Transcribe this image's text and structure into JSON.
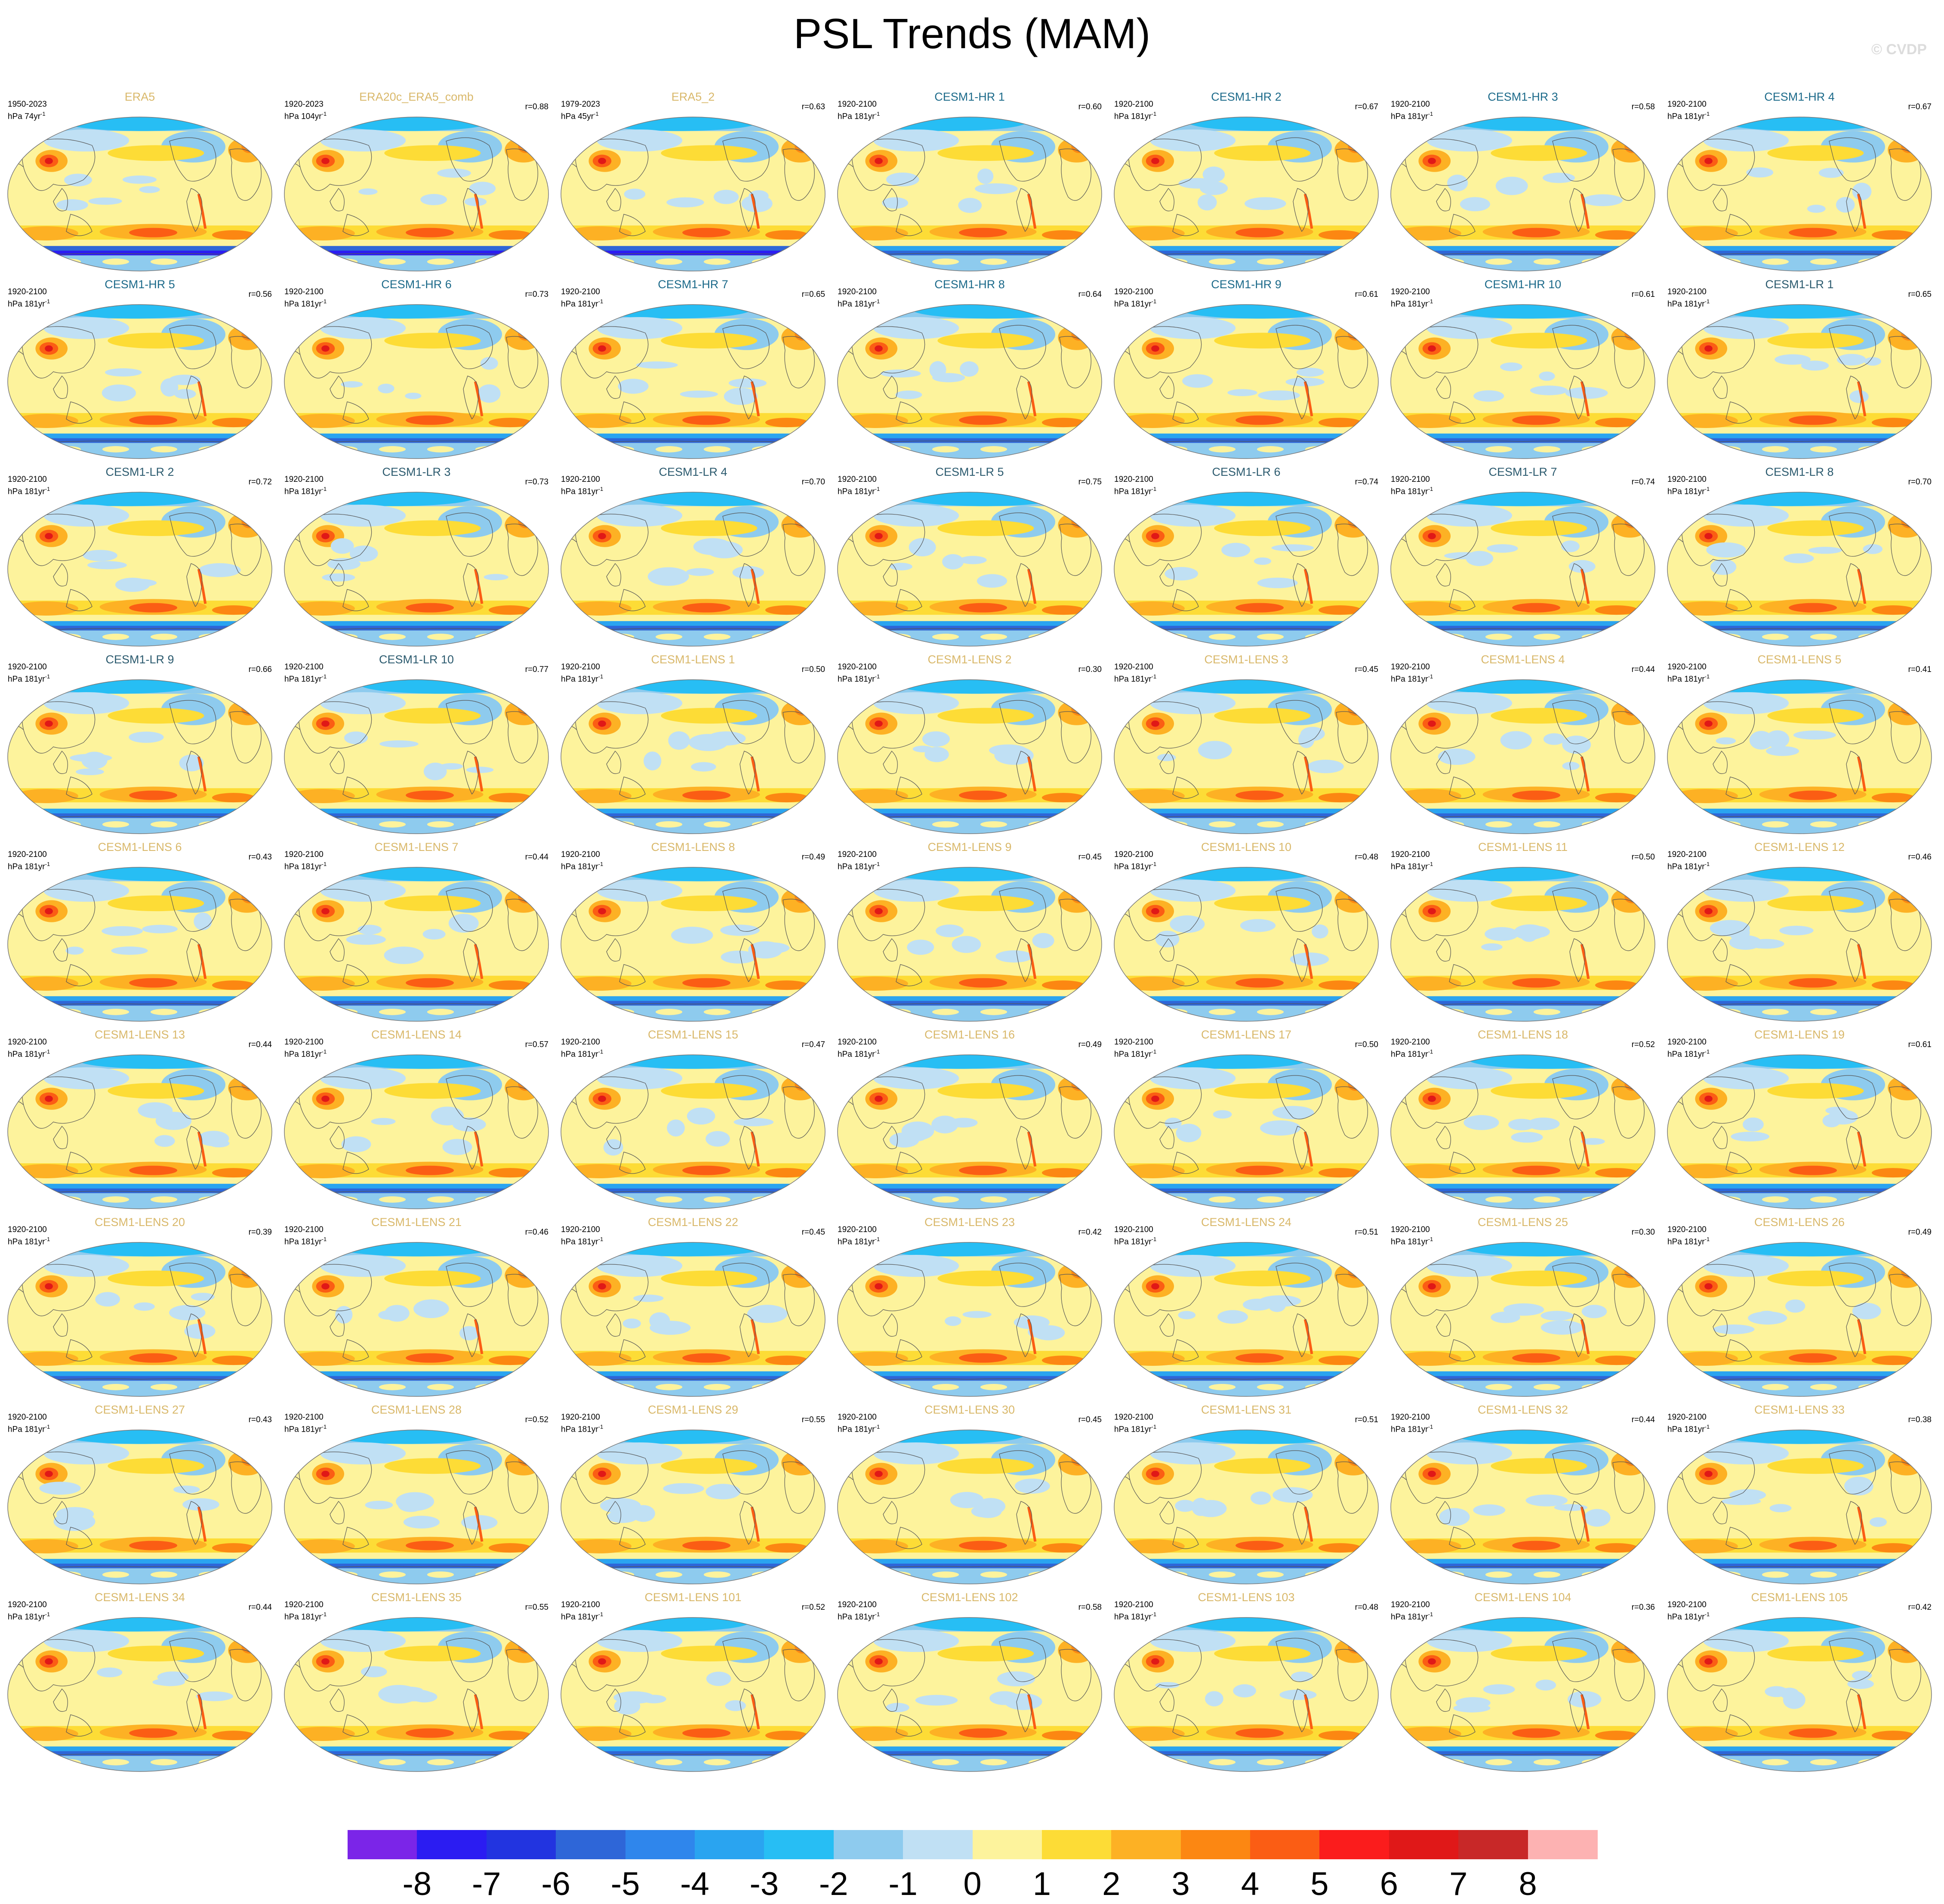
{
  "title": "PSL Trends (MAM)",
  "credit": "© CVDP",
  "colors": {
    "obs_title": "#d9b86a",
    "hr_title": "#1c6a8a",
    "lr_title": "#2b5a6e",
    "lens_title": "#d9b86a",
    "ocean": "#fdf39c",
    "coast": "#555555"
  },
  "colorbar": {
    "colors": [
      "#7b25e8",
      "#2b1cf2",
      "#2234e0",
      "#2e66d8",
      "#2f86ec",
      "#2aa4f0",
      "#27bef4",
      "#8ecbee",
      "#c0e0f4",
      "#fdf39c",
      "#fddc36",
      "#fdb124",
      "#fc8712",
      "#fb5d14",
      "#fb1c1c",
      "#e01818",
      "#c82828",
      "#fdb2b2"
    ],
    "labels": [
      "-8",
      "-7",
      "-6",
      "-5",
      "-4",
      "-3",
      "-2",
      "-1",
      "0",
      "1",
      "2",
      "3",
      "4",
      "5",
      "6",
      "7",
      "8"
    ]
  },
  "panels": [
    {
      "name": "ERA5",
      "group": "obs",
      "period": "1950-2023",
      "units": "hPa 74yr",
      "corr": ""
    },
    {
      "name": "ERA20c_ERA5_comb",
      "group": "obs",
      "period": "1920-2023",
      "units": "hPa 104yr",
      "corr": "r=0.88"
    },
    {
      "name": "ERA5_2",
      "group": "obs",
      "period": "1979-2023",
      "units": "hPa 45yr",
      "corr": "r=0.63"
    },
    {
      "name": "CESM1-HR 1",
      "group": "hr",
      "period": "1920-2100",
      "units": "hPa 181yr",
      "corr": "r=0.60"
    },
    {
      "name": "CESM1-HR 2",
      "group": "hr",
      "period": "1920-2100",
      "units": "hPa 181yr",
      "corr": "r=0.67"
    },
    {
      "name": "CESM1-HR 3",
      "group": "hr",
      "period": "1920-2100",
      "units": "hPa 181yr",
      "corr": "r=0.58"
    },
    {
      "name": "CESM1-HR 4",
      "group": "hr",
      "period": "1920-2100",
      "units": "hPa 181yr",
      "corr": "r=0.67"
    },
    {
      "name": "CESM1-HR 5",
      "group": "hr",
      "period": "1920-2100",
      "units": "hPa 181yr",
      "corr": "r=0.56"
    },
    {
      "name": "CESM1-HR 6",
      "group": "hr",
      "period": "1920-2100",
      "units": "hPa 181yr",
      "corr": "r=0.73"
    },
    {
      "name": "CESM1-HR 7",
      "group": "hr",
      "period": "1920-2100",
      "units": "hPa 181yr",
      "corr": "r=0.65"
    },
    {
      "name": "CESM1-HR 8",
      "group": "hr",
      "period": "1920-2100",
      "units": "hPa 181yr",
      "corr": "r=0.64"
    },
    {
      "name": "CESM1-HR 9",
      "group": "hr",
      "period": "1920-2100",
      "units": "hPa 181yr",
      "corr": "r=0.61"
    },
    {
      "name": "CESM1-HR 10",
      "group": "hr",
      "period": "1920-2100",
      "units": "hPa 181yr",
      "corr": "r=0.61"
    },
    {
      "name": "CESM1-LR 1",
      "group": "lr",
      "period": "1920-2100",
      "units": "hPa 181yr",
      "corr": "r=0.65"
    },
    {
      "name": "CESM1-LR 2",
      "group": "lr",
      "period": "1920-2100",
      "units": "hPa 181yr",
      "corr": "r=0.72"
    },
    {
      "name": "CESM1-LR 3",
      "group": "lr",
      "period": "1920-2100",
      "units": "hPa 181yr",
      "corr": "r=0.73"
    },
    {
      "name": "CESM1-LR 4",
      "group": "lr",
      "period": "1920-2100",
      "units": "hPa 181yr",
      "corr": "r=0.70"
    },
    {
      "name": "CESM1-LR 5",
      "group": "lr",
      "period": "1920-2100",
      "units": "hPa 181yr",
      "corr": "r=0.75"
    },
    {
      "name": "CESM1-LR 6",
      "group": "lr",
      "period": "1920-2100",
      "units": "hPa 181yr",
      "corr": "r=0.74"
    },
    {
      "name": "CESM1-LR 7",
      "group": "lr",
      "period": "1920-2100",
      "units": "hPa 181yr",
      "corr": "r=0.74"
    },
    {
      "name": "CESM1-LR 8",
      "group": "lr",
      "period": "1920-2100",
      "units": "hPa 181yr",
      "corr": "r=0.70"
    },
    {
      "name": "CESM1-LR 9",
      "group": "lr",
      "period": "1920-2100",
      "units": "hPa 181yr",
      "corr": "r=0.66"
    },
    {
      "name": "CESM1-LR 10",
      "group": "lr",
      "period": "1920-2100",
      "units": "hPa 181yr",
      "corr": "r=0.77"
    },
    {
      "name": "CESM1-LENS 1",
      "group": "lens",
      "period": "1920-2100",
      "units": "hPa 181yr",
      "corr": "r=0.50"
    },
    {
      "name": "CESM1-LENS 2",
      "group": "lens",
      "period": "1920-2100",
      "units": "hPa 181yr",
      "corr": "r=0.30"
    },
    {
      "name": "CESM1-LENS 3",
      "group": "lens",
      "period": "1920-2100",
      "units": "hPa 181yr",
      "corr": "r=0.45"
    },
    {
      "name": "CESM1-LENS 4",
      "group": "lens",
      "period": "1920-2100",
      "units": "hPa 181yr",
      "corr": "r=0.44"
    },
    {
      "name": "CESM1-LENS 5",
      "group": "lens",
      "period": "1920-2100",
      "units": "hPa 181yr",
      "corr": "r=0.41"
    },
    {
      "name": "CESM1-LENS 6",
      "group": "lens",
      "period": "1920-2100",
      "units": "hPa 181yr",
      "corr": "r=0.43"
    },
    {
      "name": "CESM1-LENS 7",
      "group": "lens",
      "period": "1920-2100",
      "units": "hPa 181yr",
      "corr": "r=0.44"
    },
    {
      "name": "CESM1-LENS 8",
      "group": "lens",
      "period": "1920-2100",
      "units": "hPa 181yr",
      "corr": "r=0.49"
    },
    {
      "name": "CESM1-LENS 9",
      "group": "lens",
      "period": "1920-2100",
      "units": "hPa 181yr",
      "corr": "r=0.45"
    },
    {
      "name": "CESM1-LENS 10",
      "group": "lens",
      "period": "1920-2100",
      "units": "hPa 181yr",
      "corr": "r=0.48"
    },
    {
      "name": "CESM1-LENS 11",
      "group": "lens",
      "period": "1920-2100",
      "units": "hPa 181yr",
      "corr": "r=0.50"
    },
    {
      "name": "CESM1-LENS 12",
      "group": "lens",
      "period": "1920-2100",
      "units": "hPa 181yr",
      "corr": "r=0.46"
    },
    {
      "name": "CESM1-LENS 13",
      "group": "lens",
      "period": "1920-2100",
      "units": "hPa 181yr",
      "corr": "r=0.44"
    },
    {
      "name": "CESM1-LENS 14",
      "group": "lens",
      "period": "1920-2100",
      "units": "hPa 181yr",
      "corr": "r=0.57"
    },
    {
      "name": "CESM1-LENS 15",
      "group": "lens",
      "period": "1920-2100",
      "units": "hPa 181yr",
      "corr": "r=0.47"
    },
    {
      "name": "CESM1-LENS 16",
      "group": "lens",
      "period": "1920-2100",
      "units": "hPa 181yr",
      "corr": "r=0.49"
    },
    {
      "name": "CESM1-LENS 17",
      "group": "lens",
      "period": "1920-2100",
      "units": "hPa 181yr",
      "corr": "r=0.50"
    },
    {
      "name": "CESM1-LENS 18",
      "group": "lens",
      "period": "1920-2100",
      "units": "hPa 181yr",
      "corr": "r=0.52"
    },
    {
      "name": "CESM1-LENS 19",
      "group": "lens",
      "period": "1920-2100",
      "units": "hPa 181yr",
      "corr": "r=0.61"
    },
    {
      "name": "CESM1-LENS 20",
      "group": "lens",
      "period": "1920-2100",
      "units": "hPa 181yr",
      "corr": "r=0.39"
    },
    {
      "name": "CESM1-LENS 21",
      "group": "lens",
      "period": "1920-2100",
      "units": "hPa 181yr",
      "corr": "r=0.46"
    },
    {
      "name": "CESM1-LENS 22",
      "group": "lens",
      "period": "1920-2100",
      "units": "hPa 181yr",
      "corr": "r=0.45"
    },
    {
      "name": "CESM1-LENS 23",
      "group": "lens",
      "period": "1920-2100",
      "units": "hPa 181yr",
      "corr": "r=0.42"
    },
    {
      "name": "CESM1-LENS 24",
      "group": "lens",
      "period": "1920-2100",
      "units": "hPa 181yr",
      "corr": "r=0.51"
    },
    {
      "name": "CESM1-LENS 25",
      "group": "lens",
      "period": "1920-2100",
      "units": "hPa 181yr",
      "corr": "r=0.30"
    },
    {
      "name": "CESM1-LENS 26",
      "group": "lens",
      "period": "1920-2100",
      "units": "hPa 181yr",
      "corr": "r=0.49"
    },
    {
      "name": "CESM1-LENS 27",
      "group": "lens",
      "period": "1920-2100",
      "units": "hPa 181yr",
      "corr": "r=0.43"
    },
    {
      "name": "CESM1-LENS 28",
      "group": "lens",
      "period": "1920-2100",
      "units": "hPa 181yr",
      "corr": "r=0.52"
    },
    {
      "name": "CESM1-LENS 29",
      "group": "lens",
      "period": "1920-2100",
      "units": "hPa 181yr",
      "corr": "r=0.55"
    },
    {
      "name": "CESM1-LENS 30",
      "group": "lens",
      "period": "1920-2100",
      "units": "hPa 181yr",
      "corr": "r=0.45"
    },
    {
      "name": "CESM1-LENS 31",
      "group": "lens",
      "period": "1920-2100",
      "units": "hPa 181yr",
      "corr": "r=0.51"
    },
    {
      "name": "CESM1-LENS 32",
      "group": "lens",
      "period": "1920-2100",
      "units": "hPa 181yr",
      "corr": "r=0.44"
    },
    {
      "name": "CESM1-LENS 33",
      "group": "lens",
      "period": "1920-2100",
      "units": "hPa 181yr",
      "corr": "r=0.38"
    },
    {
      "name": "CESM1-LENS 34",
      "group": "lens",
      "period": "1920-2100",
      "units": "hPa 181yr",
      "corr": "r=0.44"
    },
    {
      "name": "CESM1-LENS 35",
      "group": "lens",
      "period": "1920-2100",
      "units": "hPa 181yr",
      "corr": "r=0.55"
    },
    {
      "name": "CESM1-LENS 101",
      "group": "lens",
      "period": "1920-2100",
      "units": "hPa 181yr",
      "corr": "r=0.52"
    },
    {
      "name": "CESM1-LENS 102",
      "group": "lens",
      "period": "1920-2100",
      "units": "hPa 181yr",
      "corr": "r=0.58"
    },
    {
      "name": "CESM1-LENS 103",
      "group": "lens",
      "period": "1920-2100",
      "units": "hPa 181yr",
      "corr": "r=0.48"
    },
    {
      "name": "CESM1-LENS 104",
      "group": "lens",
      "period": "1920-2100",
      "units": "hPa 181yr",
      "corr": "r=0.36"
    },
    {
      "name": "CESM1-LENS 105",
      "group": "lens",
      "period": "1920-2100",
      "units": "hPa 181yr",
      "corr": "r=0.42"
    }
  ]
}
